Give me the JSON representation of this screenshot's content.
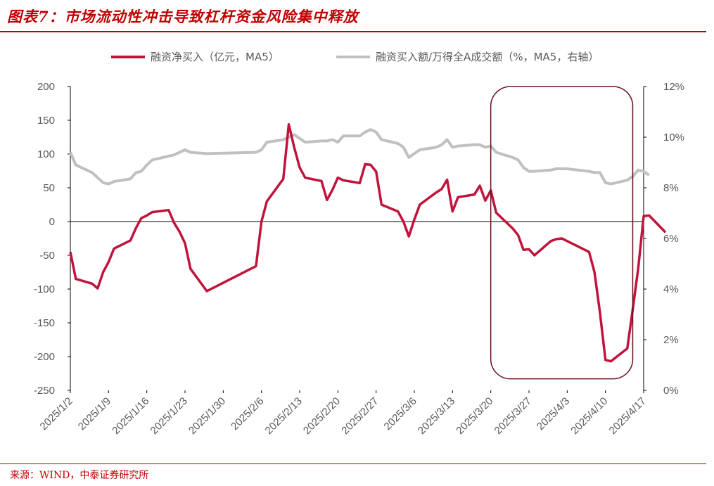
{
  "title": "图表7：市场流动性冲击导致杠杆资金风险集中释放",
  "source": "来源：WIND，中泰证券研究所",
  "colors": {
    "title": "#c00000",
    "series_primary": "#c0143c",
    "series_secondary": "#c0c0c0",
    "highlight_box": "#6b1020",
    "axis": "#000000",
    "tick_text": "#595959"
  },
  "chart_data": {
    "type": "line",
    "x_tick_labels": [
      "2025/1/2",
      "2025/1/9",
      "2025/1/16",
      "2025/1/23",
      "2025/1/30",
      "2025/2/6",
      "2025/2/13",
      "2025/2/20",
      "2025/2/27",
      "2025/3/6",
      "2025/3/13",
      "2025/3/20",
      "2025/3/27",
      "2025/4/3",
      "2025/4/10",
      "2025/4/17"
    ],
    "xlim": [
      "2025/1/2",
      "2025/4/17"
    ],
    "y_left": {
      "ticks": [
        "200",
        "150",
        "100",
        "50",
        "0",
        "-50",
        "-100",
        "-150",
        "-200",
        "-250"
      ],
      "ylim": [
        -250,
        200
      ]
    },
    "y_right": {
      "ticks": [
        "12%",
        "10%",
        "8%",
        "6%",
        "4%",
        "2%",
        "0%"
      ],
      "ylim": [
        0,
        12
      ]
    },
    "legend": {
      "position": "top"
    },
    "series": [
      {
        "name": "融资净买入（亿元，MA5）",
        "axis": "left",
        "points": [
          [
            "2025/1/2",
            -45
          ],
          [
            "2025/1/3",
            -85
          ],
          [
            "2025/1/6",
            -92
          ],
          [
            "2025/1/7",
            -99
          ],
          [
            "2025/1/8",
            -75
          ],
          [
            "2025/1/9",
            -60
          ],
          [
            "2025/1/10",
            -40
          ],
          [
            "2025/1/13",
            -28
          ],
          [
            "2025/1/14",
            -10
          ],
          [
            "2025/1/15",
            5
          ],
          [
            "2025/1/16",
            9
          ],
          [
            "2025/1/17",
            14
          ],
          [
            "2025/1/20",
            17
          ],
          [
            "2025/1/21",
            -2
          ],
          [
            "2025/1/22",
            -15
          ],
          [
            "2025/1/23",
            -32
          ],
          [
            "2025/1/24",
            -70
          ],
          [
            "2025/1/27",
            -103
          ],
          [
            "2025/2/5",
            -66
          ],
          [
            "2025/2/6",
            0
          ],
          [
            "2025/2/7",
            30
          ],
          [
            "2025/2/10",
            63
          ],
          [
            "2025/2/11",
            144
          ],
          [
            "2025/2/12",
            110
          ],
          [
            "2025/2/13",
            80
          ],
          [
            "2025/2/14",
            65
          ],
          [
            "2025/2/17",
            60
          ],
          [
            "2025/2/18",
            32
          ],
          [
            "2025/2/19",
            47
          ],
          [
            "2025/2/20",
            65
          ],
          [
            "2025/2/21",
            61
          ],
          [
            "2025/2/24",
            57
          ],
          [
            "2025/2/25",
            85
          ],
          [
            "2025/2/26",
            84
          ],
          [
            "2025/2/27",
            74
          ],
          [
            "2025/2/28",
            25
          ],
          [
            "2025/3/3",
            15
          ],
          [
            "2025/3/4",
            0
          ],
          [
            "2025/3/5",
            -22
          ],
          [
            "2025/3/6",
            3
          ],
          [
            "2025/3/7",
            25
          ],
          [
            "2025/3/10",
            43
          ],
          [
            "2025/3/11",
            48
          ],
          [
            "2025/3/12",
            62
          ],
          [
            "2025/3/13",
            15
          ],
          [
            "2025/3/14",
            36
          ],
          [
            "2025/3/17",
            40
          ],
          [
            "2025/3/18",
            53
          ],
          [
            "2025/3/19",
            31
          ],
          [
            "2025/3/20",
            46
          ],
          [
            "2025/3/21",
            13
          ],
          [
            "2025/3/24",
            -10
          ],
          [
            "2025/3/25",
            -20
          ],
          [
            "2025/3/26",
            -42
          ],
          [
            "2025/3/27",
            -41
          ],
          [
            "2025/3/28",
            -50
          ],
          [
            "2025/3/31",
            -29
          ],
          [
            "2025/4/1",
            -26
          ],
          [
            "2025/4/2",
            -25
          ],
          [
            "2025/4/3",
            -29
          ],
          [
            "2025/4/7",
            -45
          ],
          [
            "2025/4/8",
            -75
          ],
          [
            "2025/4/9",
            -135
          ],
          [
            "2025/4/10",
            -205
          ],
          [
            "2025/4/11",
            -207
          ],
          [
            "2025/4/14",
            -188
          ],
          [
            "2025/4/15",
            -130
          ],
          [
            "2025/4/16",
            -70
          ],
          [
            "2025/4/17",
            8
          ],
          [
            "2025/4/18",
            9
          ],
          [
            "2025/4/21",
            -16
          ]
        ]
      },
      {
        "name": "融资买入额/万得全A成交额（%，MA5，右轴）",
        "axis": "right",
        "points": [
          [
            "2025/1/2",
            9.4
          ],
          [
            "2025/1/3",
            8.9
          ],
          [
            "2025/1/6",
            8.6
          ],
          [
            "2025/1/7",
            8.4
          ],
          [
            "2025/1/8",
            8.2
          ],
          [
            "2025/1/9",
            8.15
          ],
          [
            "2025/1/10",
            8.25
          ],
          [
            "2025/1/13",
            8.35
          ],
          [
            "2025/1/14",
            8.6
          ],
          [
            "2025/1/15",
            8.65
          ],
          [
            "2025/1/16",
            8.9
          ],
          [
            "2025/1/17",
            9.1
          ],
          [
            "2025/1/20",
            9.25
          ],
          [
            "2025/1/21",
            9.3
          ],
          [
            "2025/1/22",
            9.4
          ],
          [
            "2025/1/23",
            9.5
          ],
          [
            "2025/1/24",
            9.4
          ],
          [
            "2025/1/27",
            9.35
          ],
          [
            "2025/2/5",
            9.4
          ],
          [
            "2025/2/6",
            9.5
          ],
          [
            "2025/2/7",
            9.8
          ],
          [
            "2025/2/10",
            9.9
          ],
          [
            "2025/2/11",
            10.0
          ],
          [
            "2025/2/12",
            10.1
          ],
          [
            "2025/2/13",
            9.95
          ],
          [
            "2025/2/14",
            9.8
          ],
          [
            "2025/2/17",
            9.85
          ],
          [
            "2025/2/18",
            9.85
          ],
          [
            "2025/2/19",
            9.9
          ],
          [
            "2025/2/20",
            9.8
          ],
          [
            "2025/2/21",
            10.05
          ],
          [
            "2025/2/24",
            10.05
          ],
          [
            "2025/2/25",
            10.2
          ],
          [
            "2025/2/26",
            10.3
          ],
          [
            "2025/2/27",
            10.2
          ],
          [
            "2025/2/28",
            9.9
          ],
          [
            "2025/3/3",
            9.75
          ],
          [
            "2025/3/4",
            9.6
          ],
          [
            "2025/3/5",
            9.2
          ],
          [
            "2025/3/6",
            9.35
          ],
          [
            "2025/3/7",
            9.5
          ],
          [
            "2025/3/10",
            9.6
          ],
          [
            "2025/3/11",
            9.7
          ],
          [
            "2025/3/12",
            9.9
          ],
          [
            "2025/3/13",
            9.6
          ],
          [
            "2025/3/14",
            9.65
          ],
          [
            "2025/3/17",
            9.7
          ],
          [
            "2025/3/18",
            9.7
          ],
          [
            "2025/3/19",
            9.6
          ],
          [
            "2025/3/20",
            9.65
          ],
          [
            "2025/3/21",
            9.4
          ],
          [
            "2025/3/24",
            9.2
          ],
          [
            "2025/3/25",
            9.1
          ],
          [
            "2025/3/26",
            8.8
          ],
          [
            "2025/3/27",
            8.65
          ],
          [
            "2025/3/28",
            8.65
          ],
          [
            "2025/3/31",
            8.7
          ],
          [
            "2025/4/1",
            8.75
          ],
          [
            "2025/4/2",
            8.75
          ],
          [
            "2025/4/3",
            8.75
          ],
          [
            "2025/4/7",
            8.65
          ],
          [
            "2025/4/8",
            8.6
          ],
          [
            "2025/4/9",
            8.6
          ],
          [
            "2025/4/10",
            8.2
          ],
          [
            "2025/4/11",
            8.15
          ],
          [
            "2025/4/14",
            8.3
          ],
          [
            "2025/4/15",
            8.45
          ],
          [
            "2025/4/16",
            8.7
          ],
          [
            "2025/4/17",
            8.65
          ],
          [
            "2025/4/18",
            8.5
          ]
        ]
      }
    ],
    "highlight_region": {
      "x_start": "2025/3/20",
      "x_end": "2025/4/15",
      "y_top": 200,
      "y_bottom": -233
    }
  }
}
